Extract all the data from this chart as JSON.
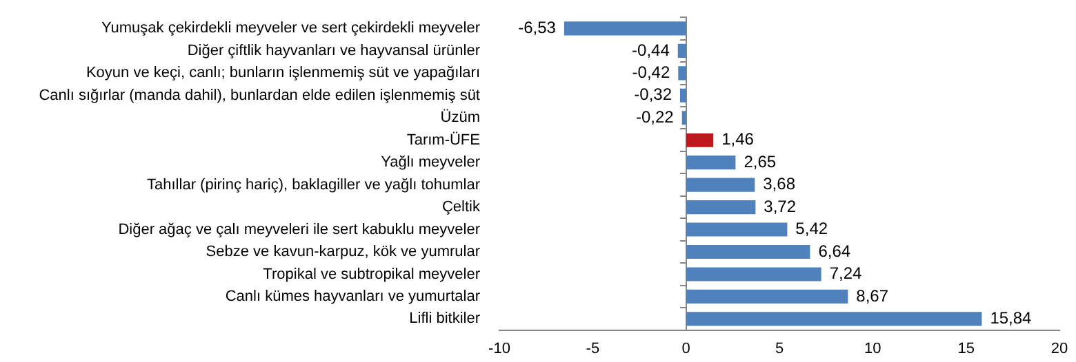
{
  "chart_data": {
    "type": "bar",
    "orientation": "horizontal",
    "categories": [
      "Yumuşak çekirdekli meyveler ve sert çekirdekli meyveler",
      "Diğer çiftlik hayvanları ve hayvansal ürünler",
      "Koyun ve keçi, canlı; bunların işlenmemiş süt ve yapağıları",
      "Canlı sığırlar (manda dahil), bunlardan elde edilen işlenmemiş süt",
      "Üzüm",
      "Tarım-ÜFE",
      "Yağlı meyveler",
      "Tahıllar (pirinç hariç), baklagiller ve yağlı tohumlar",
      "Çeltik",
      "Diğer ağaç ve çalı meyveleri ile sert kabuklu meyveler",
      "Sebze ve kavun-karpuz, kök ve yumrular",
      "Tropikal ve subtropikal meyveler",
      "Canlı kümes hayvanları ve yumurtalar",
      "Lifli bitkiler"
    ],
    "values": [
      -6.53,
      -0.44,
      -0.42,
      -0.32,
      -0.22,
      1.46,
      2.65,
      3.68,
      3.72,
      5.42,
      6.64,
      7.24,
      8.67,
      15.84
    ],
    "value_labels": [
      "-6,53",
      "-0,44",
      "-0,42",
      "-0,32",
      "-0,22",
      "1,46",
      "2,65",
      "3,68",
      "3,72",
      "5,42",
      "6,64",
      "7,24",
      "8,67",
      "15,84"
    ],
    "colors": [
      "#4f81bd",
      "#4f81bd",
      "#4f81bd",
      "#4f81bd",
      "#4f81bd",
      "#c0181f",
      "#4f81bd",
      "#4f81bd",
      "#4f81bd",
      "#4f81bd",
      "#4f81bd",
      "#4f81bd",
      "#4f81bd",
      "#4f81bd"
    ],
    "xlim": [
      -10,
      20
    ],
    "xticks": [
      -10,
      -5,
      0,
      5,
      10,
      15,
      20
    ]
  }
}
